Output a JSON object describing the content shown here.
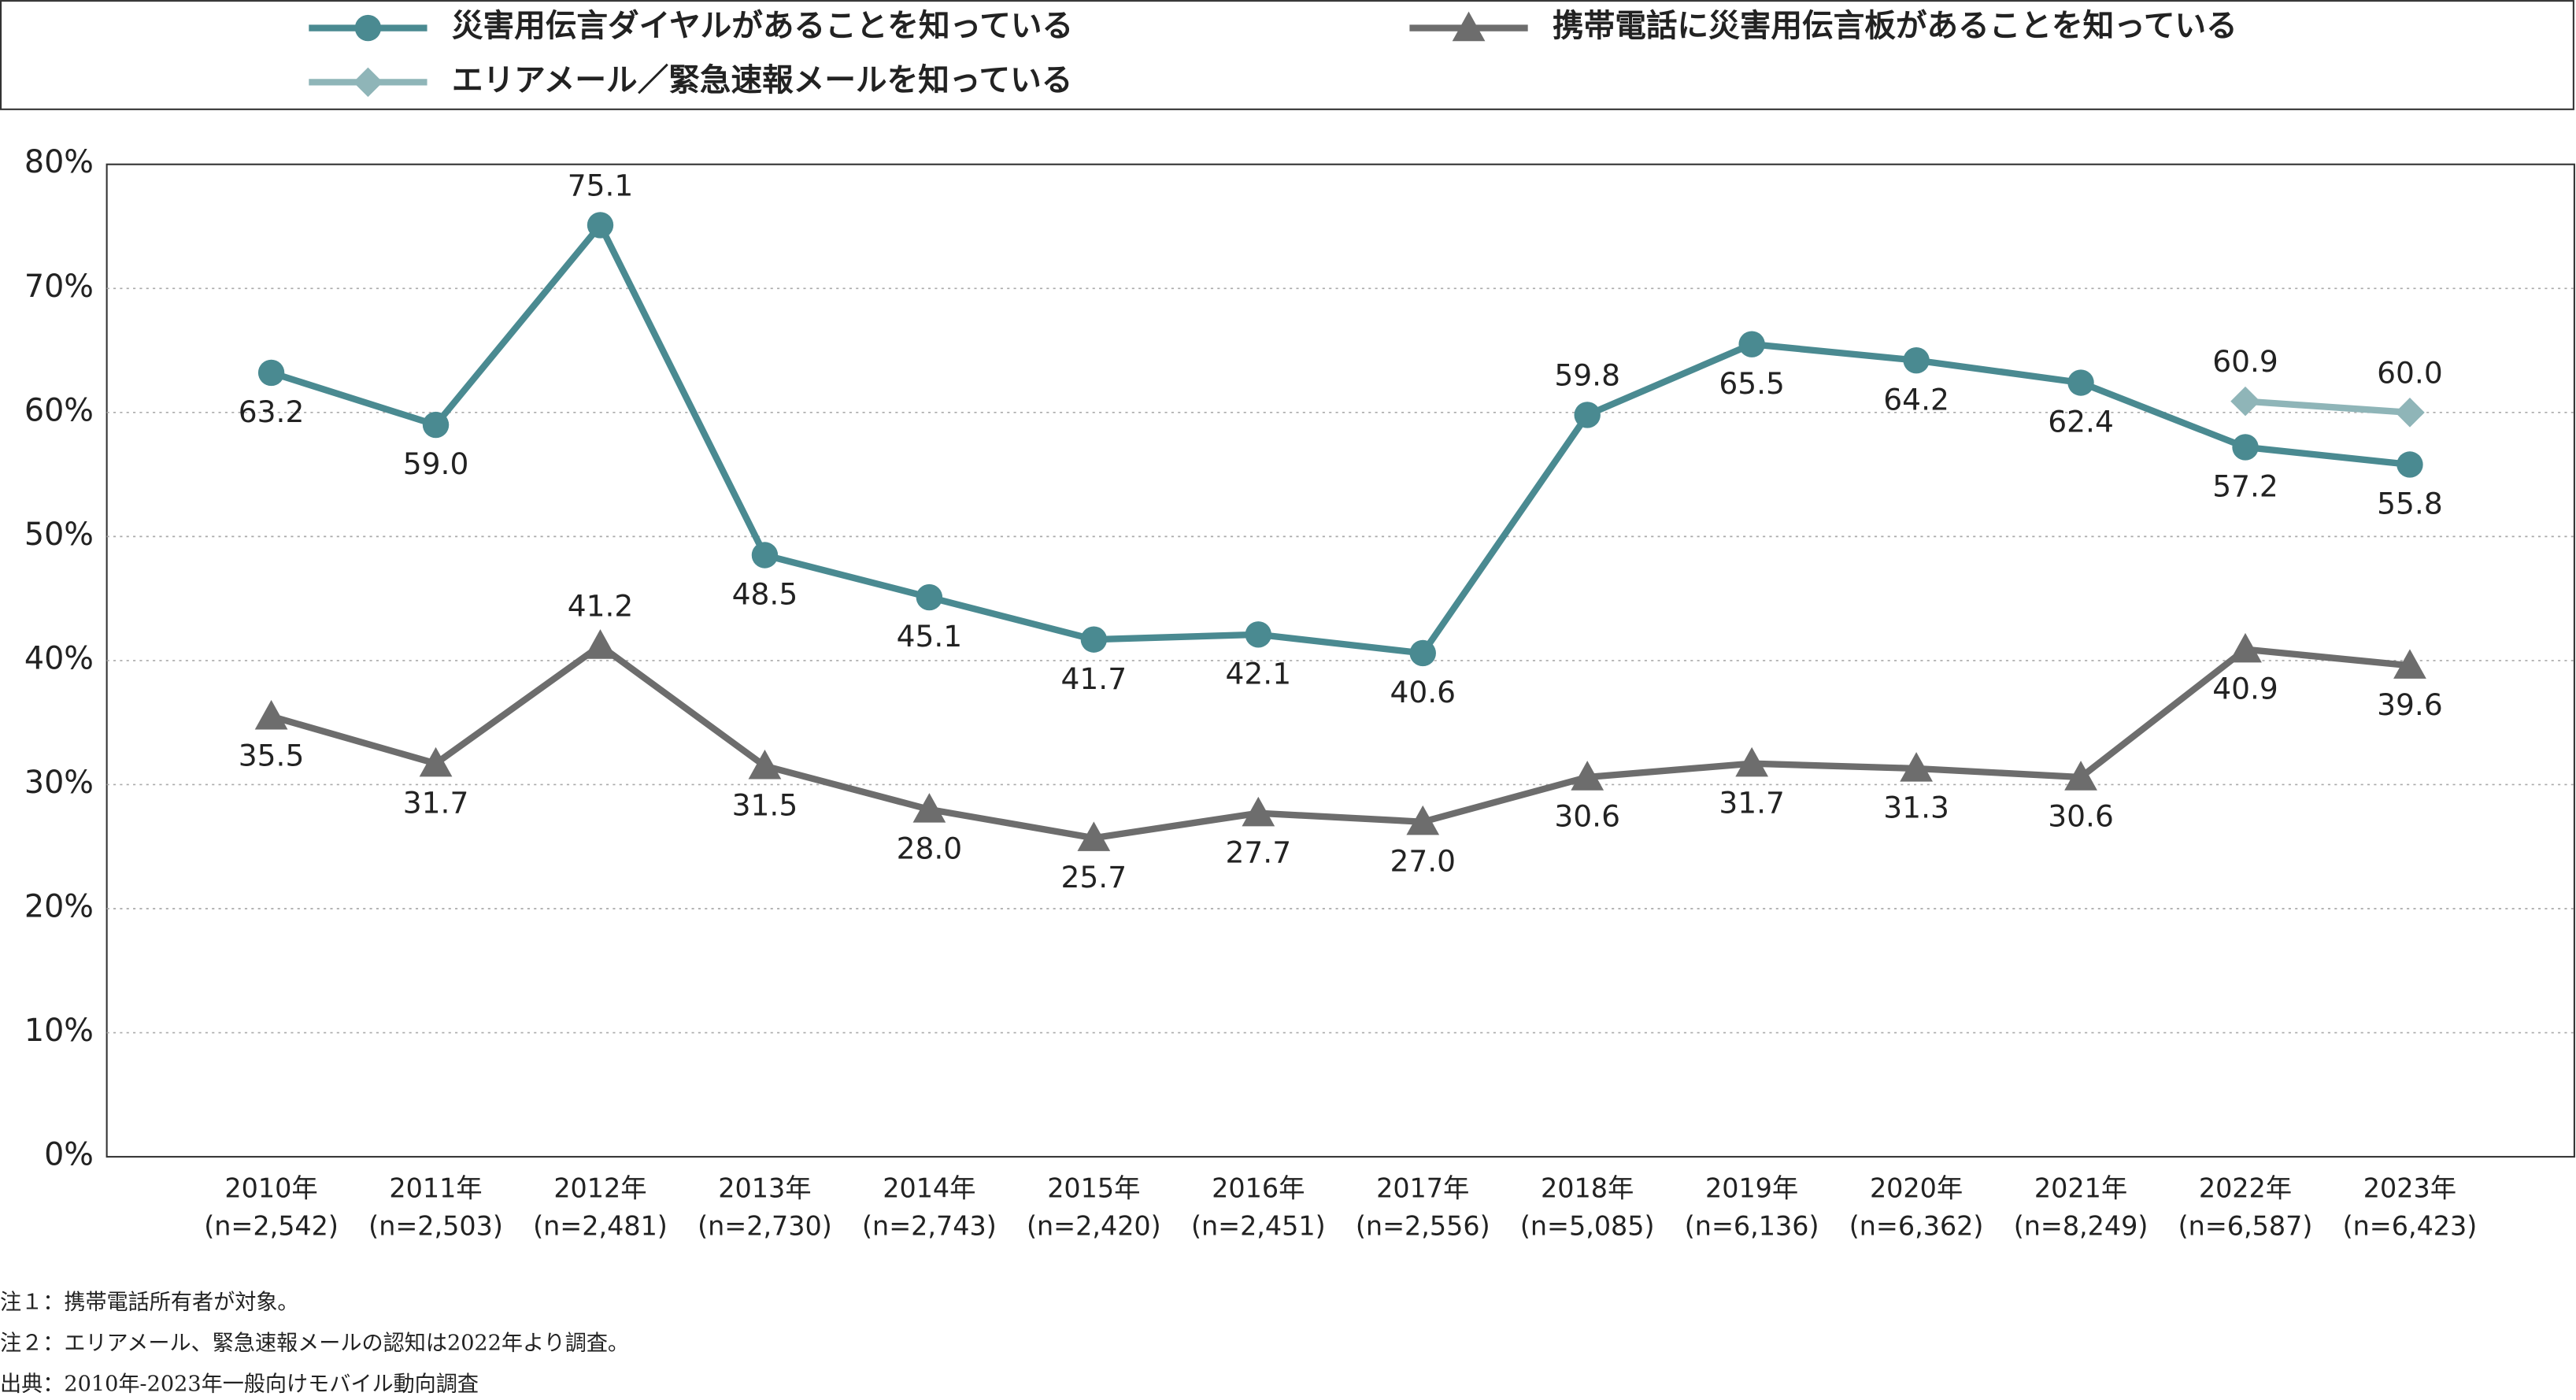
{
  "chart_data": {
    "type": "line",
    "categories": [
      "2010年",
      "2011年",
      "2012年",
      "2013年",
      "2014年",
      "2015年",
      "2016年",
      "2017年",
      "2018年",
      "2019年",
      "2020年",
      "2021年",
      "2022年",
      "2023年"
    ],
    "sample_sizes": [
      "(n=2,542)",
      "(n=2,503)",
      "(n=2,481)",
      "(n=2,730)",
      "(n=2,743)",
      "(n=2,420)",
      "(n=2,451)",
      "(n=2,556)",
      "(n=5,085)",
      "(n=6,136)",
      "(n=6,362)",
      "(n=8,249)",
      "(n=6,587)",
      "(n=6,423)"
    ],
    "series": [
      {
        "name": "災害用伝言ダイヤルがあることを知っている",
        "color": "#4a8a91",
        "marker": "circle",
        "values": [
          63.2,
          59.0,
          75.1,
          48.5,
          45.1,
          41.7,
          42.1,
          40.6,
          59.8,
          65.5,
          64.2,
          62.4,
          57.2,
          55.8
        ],
        "value_labels": [
          "63.2",
          "59.0",
          "75.1",
          "48.5",
          "45.1",
          "41.7",
          "42.1",
          "40.6",
          "59.8",
          "65.5",
          "64.2",
          "62.4",
          "57.2",
          "55.8"
        ]
      },
      {
        "name": "携帯電話に災害用伝言板があることを知っている",
        "color": "#6d6d6d",
        "marker": "triangle",
        "values": [
          35.5,
          31.7,
          41.2,
          31.5,
          28.0,
          25.7,
          27.7,
          27.0,
          30.6,
          31.7,
          31.3,
          30.6,
          40.9,
          39.6
        ],
        "value_labels": [
          "35.5",
          "31.7",
          "41.2",
          "31.5",
          "28.0",
          "25.7",
          "27.7",
          "27.0",
          "30.6",
          "31.7",
          "31.3",
          "30.6",
          "40.9",
          "39.6"
        ]
      },
      {
        "name": "エリアメール／緊急速報メールを知っている",
        "color": "#8fb5b8",
        "marker": "diamond",
        "values": [
          null,
          null,
          null,
          null,
          null,
          null,
          null,
          null,
          null,
          null,
          null,
          null,
          60.9,
          60.0
        ],
        "value_labels": [
          null,
          null,
          null,
          null,
          null,
          null,
          null,
          null,
          null,
          null,
          null,
          null,
          "60.9",
          "60.0"
        ]
      }
    ],
    "ylim": [
      0,
      80
    ],
    "yticks": [
      {
        "value": 0,
        "label": "0%"
      },
      {
        "value": 10,
        "label": "10%"
      },
      {
        "value": 20,
        "label": "20%"
      },
      {
        "value": 30,
        "label": "30%"
      },
      {
        "value": 40,
        "label": "40%"
      },
      {
        "value": 50,
        "label": "50%"
      },
      {
        "value": 60,
        "label": "60%"
      },
      {
        "value": 70,
        "label": "70%"
      },
      {
        "value": 80,
        "label": "80%"
      }
    ],
    "grid": true,
    "notes": [
      "注１：携帯電話所有者が対象。",
      "注２：エリアメール、緊急速報メールの認知は2022年より調査。",
      "出典：2010年-2023年一般向けモバイル動向調査"
    ]
  }
}
